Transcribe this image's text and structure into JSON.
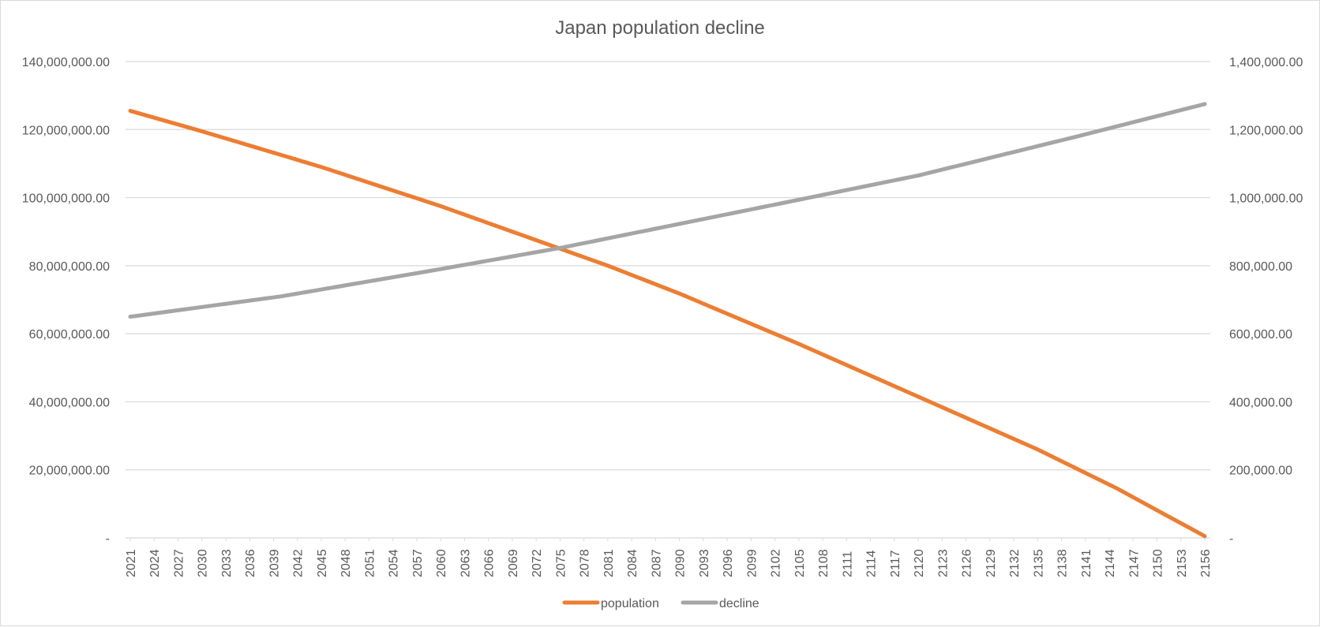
{
  "chart_data": {
    "type": "line",
    "title": "Japan population decline",
    "xlabel": "",
    "ylabel": "",
    "y2label": "",
    "grid": true,
    "legend_position": "bottom",
    "x_start": 2021,
    "x_end": 2156,
    "x_step": 1,
    "x_tick_step": 3,
    "x_ticks": [
      2021,
      2024,
      2027,
      2030,
      2033,
      2036,
      2039,
      2042,
      2045,
      2048,
      2051,
      2054,
      2057,
      2060,
      2063,
      2066,
      2069,
      2072,
      2075,
      2078,
      2081,
      2084,
      2087,
      2090,
      2093,
      2096,
      2099,
      2102,
      2105,
      2108,
      2111,
      2114,
      2117,
      2120,
      2123,
      2126,
      2129,
      2132,
      2135,
      2138,
      2141,
      2144,
      2147,
      2150,
      2153,
      2156
    ],
    "ylim": [
      0,
      140000000
    ],
    "y_ticks": [
      0,
      20000000,
      40000000,
      60000000,
      80000000,
      100000000,
      120000000,
      140000000
    ],
    "y_tick_labels": [
      "-",
      "20,000,000.00",
      "40,000,000.00",
      "60,000,000.00",
      "80,000,000.00",
      "100,000,000.00",
      "120,000,000.00",
      "140,000,000.00"
    ],
    "y2lim": [
      0,
      1400000
    ],
    "y2_ticks": [
      0,
      200000,
      400000,
      600000,
      800000,
      1000000,
      1200000,
      1400000
    ],
    "y2_tick_labels": [
      "-",
      "200,000.00",
      "400,000.00",
      "600,000.00",
      "800,000.00",
      "1,000,000.00",
      "1,200,000.00",
      "1,400,000.00"
    ],
    "series": [
      {
        "name": "population",
        "axis": "primary",
        "color": "#ed7d31",
        "anchor_x": [
          2021,
          2030,
          2045,
          2060,
          2075,
          2081,
          2090,
          2105,
          2120,
          2135,
          2145,
          2156
        ],
        "anchor_values": [
          125500000,
          119500000,
          109000000,
          97500000,
          85000000,
          80000000,
          71800000,
          57000000,
          41500000,
          26000000,
          14500000,
          500000
        ]
      },
      {
        "name": "decline",
        "axis": "secondary",
        "color": "#a5a5a5",
        "anchor_x": [
          2021,
          2040,
          2060,
          2075,
          2100,
          2120,
          2140,
          2156
        ],
        "anchor_values": [
          650000,
          710000,
          790000,
          852000,
          970000,
          1065000,
          1180000,
          1275000
        ]
      }
    ]
  }
}
